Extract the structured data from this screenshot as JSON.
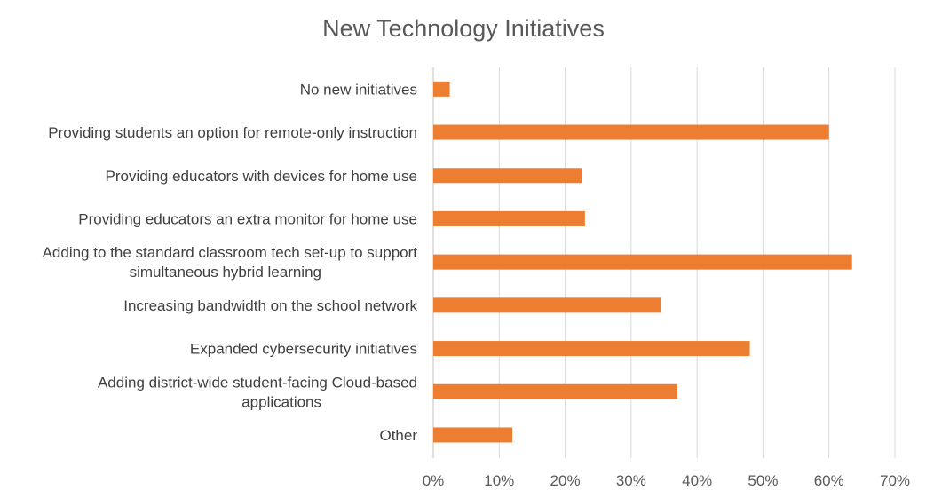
{
  "chart_data": {
    "type": "bar",
    "orientation": "horizontal",
    "title": "New Technology Initiatives",
    "xlabel": "",
    "ylabel": "",
    "xlim": [
      0,
      70
    ],
    "tick_values": [
      0,
      10,
      20,
      30,
      40,
      50,
      60,
      70
    ],
    "tick_labels": [
      "0%",
      "10%",
      "20%",
      "30%",
      "40%",
      "50%",
      "60%",
      "70%"
    ],
    "grid": true,
    "legend": "none",
    "bar_color": "#ED7D31",
    "categories": [
      [
        "No new initiatives"
      ],
      [
        "Providing students an option for remote-only instruction"
      ],
      [
        "Providing educators with devices for home use"
      ],
      [
        "Providing educators an extra monitor for home use"
      ],
      [
        "Adding to the standard classroom tech set-up to support",
        "simultaneous hybrid learning"
      ],
      [
        "Increasing bandwidth on the school network"
      ],
      [
        "Expanded cybersecurity initiatives"
      ],
      [
        "Adding district-wide student-facing Cloud-based",
        "applications"
      ],
      [
        "Other"
      ]
    ],
    "values": [
      2.5,
      60,
      22.5,
      23,
      63.5,
      34.5,
      48,
      37,
      12
    ]
  }
}
